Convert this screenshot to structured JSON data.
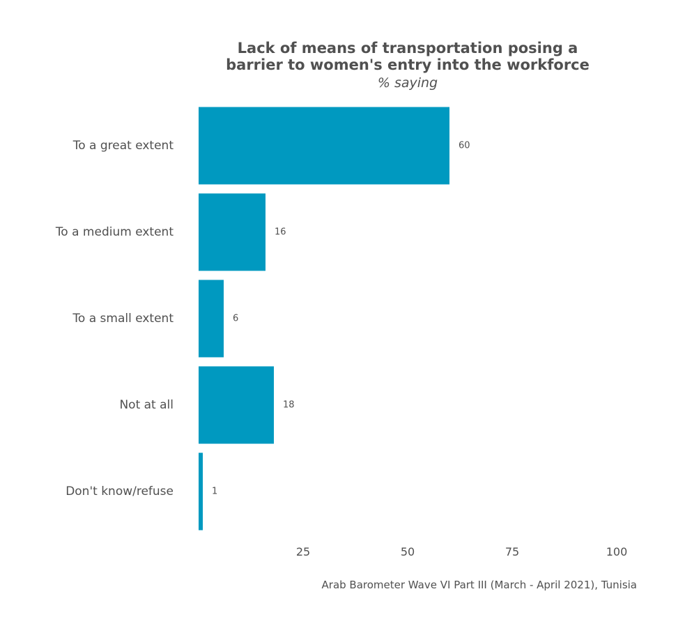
{
  "chart_data": {
    "type": "bar",
    "orientation": "horizontal",
    "title": [
      "Lack of means of transportation posing a",
      "barrier to women's entry into the workforce"
    ],
    "subtitle": "% saying",
    "categories": [
      "To a great extent",
      "To a medium extent",
      "To a small extent",
      "Not at all",
      "Don't know/refuse"
    ],
    "values": [
      60,
      16,
      6,
      18,
      1
    ],
    "value_labels": [
      "60",
      "16",
      "6",
      "18",
      "1"
    ],
    "xlim": [
      0,
      100
    ],
    "xticks": [
      25,
      50,
      75,
      100
    ],
    "xtick_labels": [
      "25",
      "50",
      "75",
      "100"
    ],
    "grid": false,
    "legend": "none",
    "bar_color": "#0099c0",
    "text_color": "#505050",
    "caption": "Arab Barometer Wave VI Part III (March - April 2021), Tunisia"
  }
}
